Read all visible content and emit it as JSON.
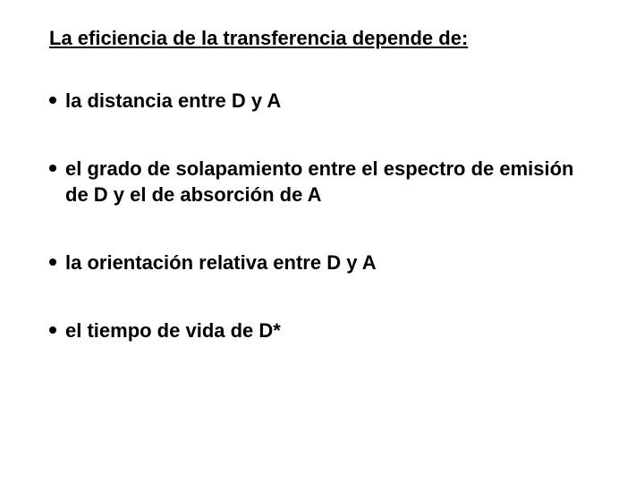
{
  "text_color": "#000000",
  "background_color": "#ffffff",
  "heading": "La eficiencia de la transferencia depende de:",
  "bullets": [
    "la distancia entre D y A",
    "el grado de solapamiento entre el espectro de emisión de D y el de absorción de A",
    "la orientación relativa entre D y A",
    "el tiempo de vida de D*"
  ]
}
